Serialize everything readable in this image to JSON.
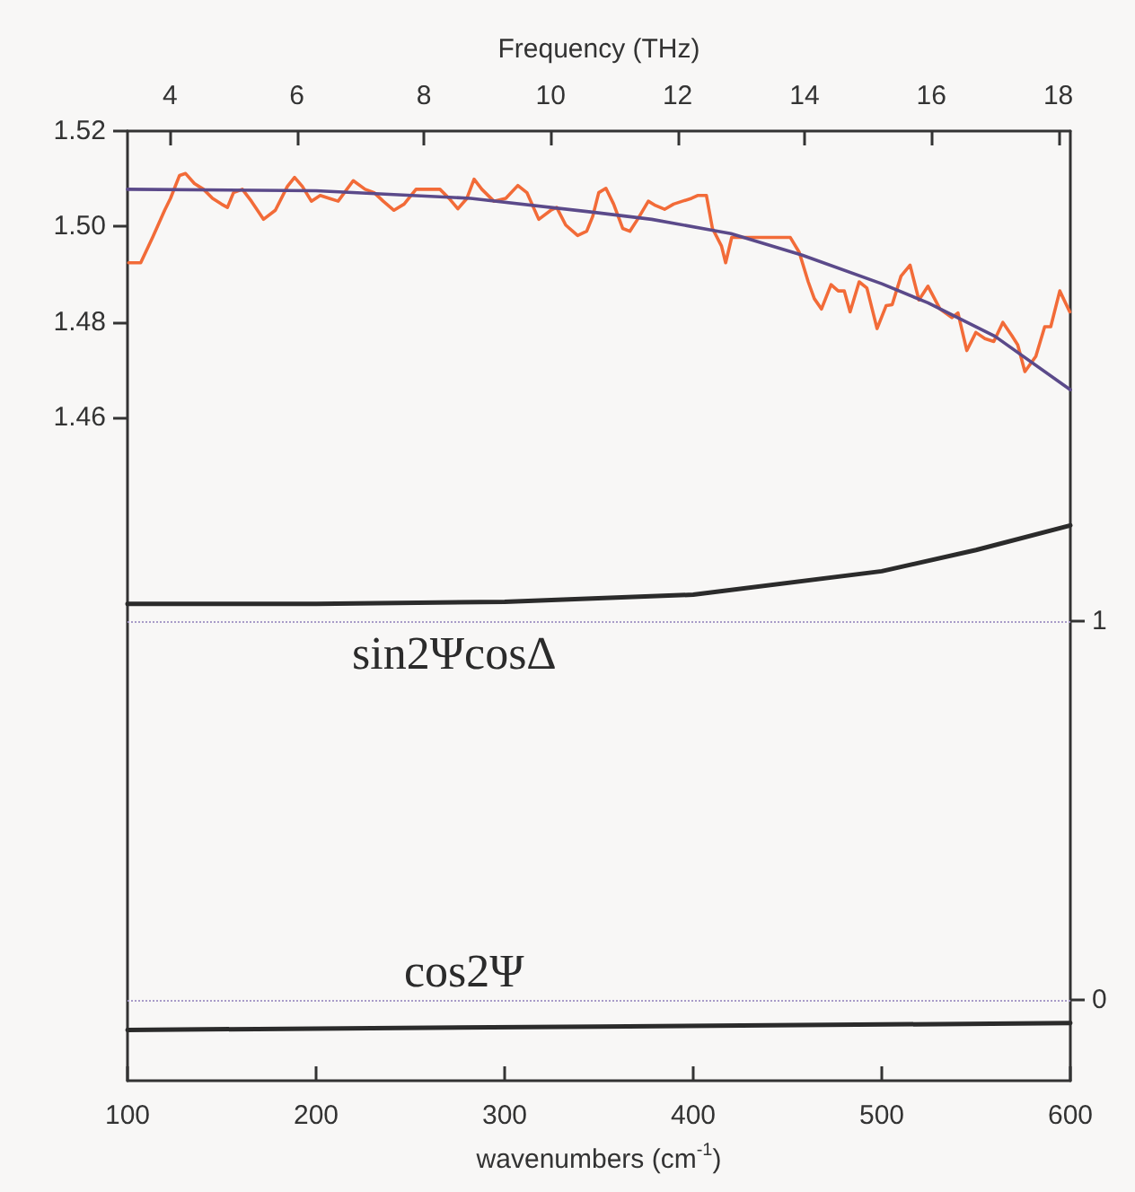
{
  "chart_data": {
    "type": "line",
    "xlabel": "wavenumbers (cm$^{-1}$)",
    "x2label": "Frequency (THz)",
    "xlim": [
      100,
      600
    ],
    "xticks": [
      100,
      200,
      300,
      400,
      500,
      600
    ],
    "x2lim": [
      3.33,
      18.19
    ],
    "x2ticks": [
      4,
      6,
      8,
      10,
      12,
      14,
      16,
      18
    ],
    "ylim": [
      1.321,
      1.52
    ],
    "yticks": [
      1.46,
      1.48,
      {
        "value": 1.5,
        "label": "1.50"
      },
      1.52
    ],
    "y2lim": [
      -0.214,
      2.293
    ],
    "y2ticks": [
      0,
      1
    ],
    "marker": "none",
    "series": [
      {
        "color": "#f26b38",
        "x": [
          100.6,
          107,
          113.3,
          119.7,
          122.8,
          127.6,
          130.8,
          135.5,
          140.3,
          145.1,
          149.8,
          153,
          156.2,
          160.9,
          165.7,
          172.1,
          178.4,
          184.8,
          188.6,
          192.7,
          197.5,
          202.2,
          207,
          211.7,
          219.7,
          226,
          230.8,
          235.6,
          241.3,
          246.7,
          253,
          261,
          265.7,
          270.5,
          275.2,
          280,
          283.8,
          287.9,
          294.3,
          300.6,
          307,
          311.8,
          318.1,
          324.5,
          327.6,
          332.4,
          338.7,
          343.5,
          346.7,
          349.9,
          353.7,
          357.8,
          362.6,
          366.4,
          370.5,
          376.2,
          380,
          384.8,
          389.6,
          394.3,
          399.1,
          402.3,
          407,
          410.2,
          415,
          417.2,
          420.4,
          451.5,
          456.2,
          461,
          464.2,
          468,
          473.1,
          476.9,
          480.1,
          483.2,
          488,
          492.1,
          497.5,
          502.3,
          505.5,
          510.2,
          515,
          519.7,
          524.5,
          530.9,
          537.2,
          540.4,
          545.1,
          549.9,
          554.7,
          559.4,
          564.2,
          569,
          572.1,
          575.9,
          581.7,
          586.4,
          589.6,
          594.4,
          599.7
        ],
        "values": [
          1.4924,
          1.4924,
          1.4977,
          1.5034,
          1.5059,
          1.5107,
          1.5111,
          1.509,
          1.5078,
          1.5059,
          1.5047,
          1.504,
          1.5071,
          1.5078,
          1.5053,
          1.5015,
          1.5034,
          1.5084,
          1.5103,
          1.5084,
          1.5053,
          1.5065,
          1.5059,
          1.5053,
          1.5096,
          1.5078,
          1.5071,
          1.5053,
          1.5034,
          1.5047,
          1.5078,
          1.5078,
          1.5078,
          1.5059,
          1.5037,
          1.5059,
          1.5099,
          1.5078,
          1.5053,
          1.5059,
          1.5086,
          1.5071,
          1.5015,
          1.5034,
          1.504,
          1.5003,
          1.4981,
          1.499,
          1.5021,
          1.5071,
          1.508,
          1.5047,
          1.4996,
          1.499,
          1.5015,
          1.5053,
          1.5044,
          1.5036,
          1.5047,
          1.5053,
          1.5059,
          1.5065,
          1.5065,
          1.4996,
          1.4959,
          1.4924,
          1.4977,
          1.4977,
          1.4946,
          1.4884,
          1.4849,
          1.4827,
          1.4878,
          1.4865,
          1.4865,
          1.4821,
          1.4884,
          1.4871,
          1.4786,
          1.4834,
          1.4836,
          1.4896,
          1.4919,
          1.4846,
          1.4875,
          1.4827,
          1.4809,
          1.4819,
          1.474,
          1.4778,
          1.4765,
          1.4759,
          1.4799,
          1.4771,
          1.4752,
          1.4696,
          1.4728,
          1.479,
          1.479,
          1.4865,
          1.4821
        ]
      },
      {
        "color": "#5b4a8a",
        "x": [
          100,
          200,
          282,
          346.7,
          378,
          420,
          457.8,
          500,
          524.5,
          560,
          600
        ],
        "values": [
          1.5078,
          1.5075,
          1.5059,
          1.503,
          1.5015,
          1.4985,
          1.494,
          1.488,
          1.484,
          1.477,
          1.4658
        ]
      },
      {
        "color": "#2b2b2b",
        "axis": "y2",
        "x": [
          100,
          200,
          300,
          400,
          500,
          550,
          600
        ],
        "values": [
          1.045,
          1.045,
          1.05,
          1.069,
          1.131,
          1.187,
          1.252
        ]
      },
      {
        "color": "#2b2b2b",
        "axis": "y2",
        "x": [
          100,
          350,
          600
        ],
        "values": [
          -0.08,
          -0.071,
          -0.062
        ]
      }
    ],
    "ref_lines": [
      {
        "axis": "y2",
        "value": 1,
        "color": "#a89cc8",
        "line_style": "dotted"
      },
      {
        "axis": "y2",
        "value": 0,
        "color": "#a89cc8",
        "line_style": "dotted"
      }
    ],
    "annotations": [
      "sin2ΨcosΔ",
      "cos2Ψ"
    ]
  }
}
